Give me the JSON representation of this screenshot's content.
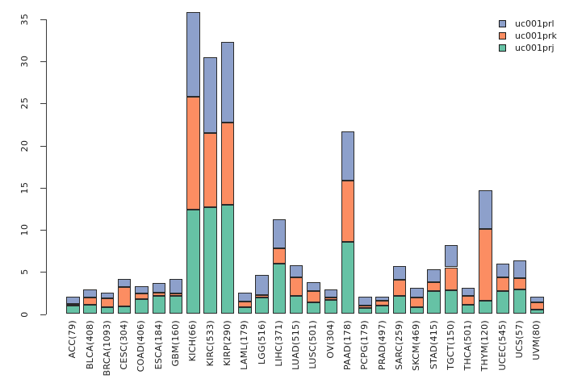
{
  "figure": {
    "background_color": "#ffffff",
    "axis_color": "#3a3a3a",
    "bar_border_color": "#2b2b2b"
  },
  "legend": {
    "position": "top-right",
    "items": [
      {
        "label": "uc001prl",
        "color": "#8da0cb"
      },
      {
        "label": "uc001prk",
        "color": "#fc8d62"
      },
      {
        "label": "uc001prj",
        "color": "#66c2a5"
      }
    ]
  },
  "chart_data": {
    "type": "bar",
    "stacked": true,
    "orientation": "vertical",
    "title": "",
    "xlabel": "",
    "ylabel": "",
    "grid": false,
    "ylim": [
      0,
      36
    ],
    "yticks": [
      0,
      5,
      10,
      15,
      20,
      25,
      30,
      35
    ],
    "legend_position": "top-right",
    "stack_order_bottom_to_top": [
      "uc001prj",
      "uc001prk",
      "uc001prl"
    ],
    "categories": [
      "ACC(79)",
      "BLCA(408)",
      "BRCA(1093)",
      "CESC(304)",
      "COAD(406)",
      "ESCA(184)",
      "GBM(160)",
      "KICH(66)",
      "KIRC(533)",
      "KIRP(290)",
      "LAML(179)",
      "LGG(516)",
      "LIHC(371)",
      "LUAD(515)",
      "LUSC(501)",
      "OV(304)",
      "PAAD(178)",
      "PCPG(179)",
      "PRAD(497)",
      "SARC(259)",
      "SKCM(469)",
      "STAD(415)",
      "TGCT(150)",
      "THCA(501)",
      "THYM(120)",
      "UCEC(545)",
      "UCS(57)",
      "UVM(80)"
    ],
    "series": [
      {
        "name": "uc001prj",
        "color": "#66c2a5",
        "values": [
          1.0,
          1.1,
          0.8,
          0.9,
          1.75,
          2.15,
          2.15,
          12.4,
          12.7,
          13.0,
          0.8,
          1.95,
          6.0,
          2.2,
          1.35,
          1.65,
          8.6,
          0.7,
          1.05,
          2.2,
          0.85,
          2.75,
          2.85,
          1.1,
          1.6,
          2.75,
          2.9,
          0.55
        ]
      },
      {
        "name": "uc001prk",
        "color": "#fc8d62",
        "values": [
          0.15,
          0.9,
          1.1,
          2.35,
          0.7,
          0.4,
          0.3,
          13.4,
          8.8,
          9.7,
          0.65,
          0.3,
          1.8,
          2.2,
          1.35,
          0.35,
          7.2,
          0.35,
          0.5,
          1.85,
          1.1,
          1.0,
          2.7,
          1.05,
          8.45,
          1.6,
          1.35,
          0.85
        ]
      },
      {
        "name": "uc001prl",
        "color": "#8da0cb",
        "values": [
          0.95,
          0.95,
          0.65,
          0.95,
          0.85,
          1.15,
          1.75,
          10.0,
          9.0,
          9.6,
          1.05,
          2.4,
          3.4,
          1.4,
          1.1,
          0.95,
          5.9,
          1.05,
          0.55,
          1.6,
          1.15,
          1.55,
          2.65,
          0.95,
          4.65,
          1.6,
          2.15,
          0.65
        ]
      }
    ]
  }
}
